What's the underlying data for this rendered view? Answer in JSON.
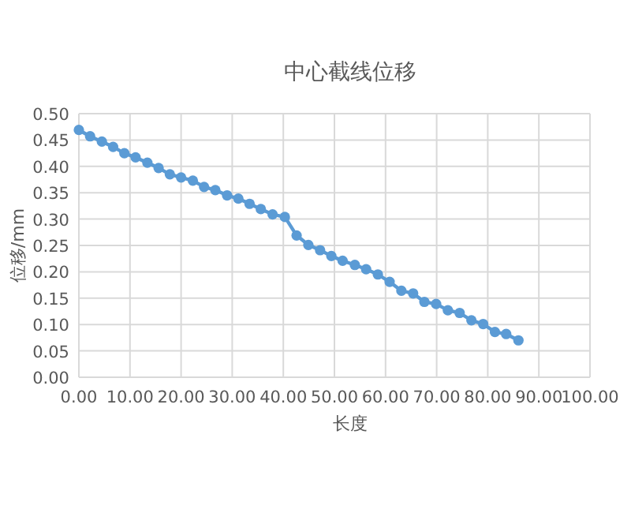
{
  "chart_data": {
    "type": "line",
    "title": "中心截线位移",
    "xlabel": "长度",
    "ylabel": "位移/mm",
    "x": [
      0,
      2.2,
      4.5,
      6.7,
      8.9,
      11.1,
      13.4,
      15.6,
      17.8,
      20.0,
      22.3,
      24.5,
      26.7,
      29.0,
      31.2,
      33.4,
      35.6,
      37.9,
      40.3,
      42.6,
      44.9,
      47.2,
      49.4,
      51.6,
      54.0,
      56.2,
      58.5,
      60.8,
      63.1,
      65.4,
      67.6,
      69.9,
      72.2,
      74.5,
      76.8,
      79.1,
      81.4,
      83.6,
      86.0
    ],
    "series": [
      {
        "color": "#5b9bd5",
        "values": [
          0.469,
          0.457,
          0.447,
          0.437,
          0.425,
          0.417,
          0.407,
          0.397,
          0.385,
          0.379,
          0.373,
          0.361,
          0.355,
          0.345,
          0.339,
          0.329,
          0.319,
          0.309,
          0.304,
          0.269,
          0.251,
          0.241,
          0.23,
          0.221,
          0.213,
          0.205,
          0.195,
          0.181,
          0.164,
          0.159,
          0.143,
          0.139,
          0.127,
          0.122,
          0.108,
          0.101,
          0.086,
          0.082,
          0.07
        ]
      }
    ],
    "xlim": [
      0,
      100
    ],
    "ylim": [
      0,
      0.5
    ],
    "xticks": [
      {
        "value": 0,
        "label": "0.00"
      },
      {
        "value": 10,
        "label": "10.00"
      },
      {
        "value": 20,
        "label": "20.00"
      },
      {
        "value": 30,
        "label": "30.00"
      },
      {
        "value": 40,
        "label": "40.00"
      },
      {
        "value": 50,
        "label": "50.00"
      },
      {
        "value": 60,
        "label": "60.00"
      },
      {
        "value": 70,
        "label": "70.00"
      },
      {
        "value": 80,
        "label": "80.00"
      },
      {
        "value": 90,
        "label": "90.00"
      },
      {
        "value": 100,
        "label": "100.00"
      }
    ],
    "yticks": [
      {
        "value": 0,
        "label": "0.00"
      },
      {
        "value": 0.05,
        "label": "0.05"
      },
      {
        "value": 0.1,
        "label": "0.10"
      },
      {
        "value": 0.15,
        "label": "0.15"
      },
      {
        "value": 0.2,
        "label": "0.20"
      },
      {
        "value": 0.25,
        "label": "0.25"
      },
      {
        "value": 0.3,
        "label": "0.30"
      },
      {
        "value": 0.35,
        "label": "0.35"
      },
      {
        "value": 0.4,
        "label": "0.40"
      },
      {
        "value": 0.45,
        "label": "0.45"
      },
      {
        "value": 0.5,
        "label": "0.50"
      }
    ],
    "grid": true,
    "marker": "circle",
    "line_style": "solid"
  }
}
